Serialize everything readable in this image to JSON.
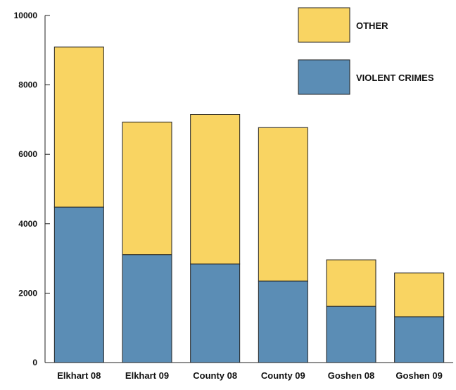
{
  "chart_data": {
    "type": "bar",
    "stacked": true,
    "categories": [
      "Elkhart 08",
      "Elkhart 09",
      "County 08",
      "County 09",
      "Goshen 08",
      "Goshen 09"
    ],
    "series": [
      {
        "name": "VIOLENT CRIMES",
        "color": "#5b8db5",
        "values": [
          4480,
          3110,
          2840,
          2350,
          1620,
          1320
        ]
      },
      {
        "name": "OTHER",
        "color": "#f9d462",
        "values": [
          4610,
          3820,
          4310,
          4420,
          1340,
          1260
        ]
      }
    ],
    "yticks": [
      "0",
      "2000",
      "4000",
      "6000",
      "8000",
      "10000"
    ],
    "ylim": [
      0,
      10000
    ],
    "grid": false,
    "legend": {
      "placement": "top-right",
      "order": [
        "OTHER",
        "VIOLENT CRIMES"
      ]
    }
  }
}
